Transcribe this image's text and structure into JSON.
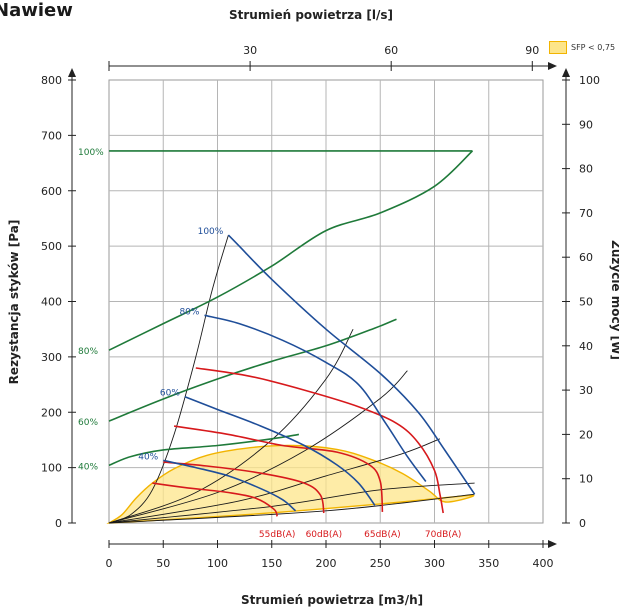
{
  "title": "Nawiew",
  "sfp_legend": {
    "label": "SFP < 0,75",
    "color": "#fde58a",
    "border": "#f2b400"
  },
  "chart_data": {
    "type": "line",
    "title": "Nawiew",
    "xlabel": "Strumień powietrza [m3/h]",
    "xlabel_top": "Strumień powietrza [l/s]",
    "ylabel": "Rezystancja styków [Pa]",
    "y2label": "Zużycie mocy [W]",
    "xlim": [
      0,
      400
    ],
    "ylim": [
      0,
      800
    ],
    "y2lim": [
      0,
      100
    ],
    "x_ticks": [
      0,
      50,
      100,
      150,
      200,
      250,
      300,
      350,
      400
    ],
    "y_ticks": [
      0,
      100,
      200,
      300,
      400,
      500,
      600,
      700,
      800
    ],
    "y2_ticks": [
      0,
      10,
      20,
      30,
      40,
      50,
      60,
      70,
      80,
      90,
      100
    ],
    "top_ticks": [
      30,
      60,
      90
    ],
    "grid": true,
    "colors": {
      "fan": "#1f4e99",
      "power": "#1f7a3a",
      "noise": "#d7191c",
      "system": "#1a1a1a",
      "sfp": "#fde58a",
      "sfp_edge": "#f2b400"
    },
    "sfp_region": {
      "name": "SFP < 0,75",
      "outline": [
        [
          0,
          0
        ],
        [
          12,
          15
        ],
        [
          25,
          45
        ],
        [
          40,
          72
        ],
        [
          60,
          98
        ],
        [
          90,
          122
        ],
        [
          130,
          136
        ],
        [
          170,
          140
        ],
        [
          210,
          133
        ],
        [
          240,
          116
        ],
        [
          270,
          90
        ],
        [
          295,
          58
        ],
        [
          310,
          38
        ],
        [
          335,
          50
        ],
        [
          270,
          38
        ],
        [
          200,
          26
        ],
        [
          140,
          17
        ],
        [
          80,
          9
        ],
        [
          0,
          0
        ]
      ]
    },
    "fan_curves": [
      {
        "label": "100%",
        "points": [
          [
            110,
            520
          ],
          [
            120,
            500
          ],
          [
            150,
            440
          ],
          [
            200,
            350
          ],
          [
            250,
            270
          ],
          [
            285,
            200
          ],
          [
            310,
            130
          ],
          [
            337,
            52
          ]
        ]
      },
      {
        "label": "80%",
        "points": [
          [
            88,
            375
          ],
          [
            120,
            360
          ],
          [
            160,
            330
          ],
          [
            200,
            290
          ],
          [
            230,
            250
          ],
          [
            255,
            180
          ],
          [
            275,
            120
          ],
          [
            292,
            75
          ]
        ]
      },
      {
        "label": "60%",
        "points": [
          [
            70,
            228
          ],
          [
            100,
            205
          ],
          [
            140,
            175
          ],
          [
            180,
            140
          ],
          [
            210,
            105
          ],
          [
            230,
            72
          ],
          [
            245,
            32
          ]
        ]
      },
      {
        "label": "40%",
        "points": [
          [
            50,
            113
          ],
          [
            80,
            100
          ],
          [
            110,
            85
          ],
          [
            140,
            62
          ],
          [
            160,
            42
          ],
          [
            172,
            22
          ]
        ]
      }
    ],
    "power_curves": [
      {
        "label": "100%",
        "points_w": [
          [
            0,
            84
          ],
          [
            50,
            84
          ],
          [
            100,
            84
          ],
          [
            150,
            84
          ],
          [
            200,
            84
          ],
          [
            250,
            84
          ],
          [
            300,
            84
          ],
          [
            335,
            84
          ]
        ]
      },
      {
        "label": "80%",
        "points_w": [
          [
            0,
            39
          ],
          [
            50,
            45
          ],
          [
            100,
            51
          ],
          [
            150,
            58
          ],
          [
            200,
            66
          ],
          [
            250,
            70
          ],
          [
            300,
            76
          ],
          [
            335,
            84
          ]
        ]
      },
      {
        "label": "60%",
        "points_w": [
          [
            0,
            23
          ],
          [
            50,
            28
          ],
          [
            100,
            32.5
          ],
          [
            150,
            36.5
          ],
          [
            200,
            40
          ],
          [
            245,
            44
          ],
          [
            265,
            46
          ]
        ]
      },
      {
        "label": "40%",
        "points_w": [
          [
            0,
            13
          ],
          [
            20,
            15
          ],
          [
            50,
            16.5
          ],
          [
            100,
            17.5
          ],
          [
            150,
            19
          ],
          [
            175,
            20
          ]
        ]
      }
    ],
    "noise_curves": [
      {
        "label": "55dB(A)",
        "points": [
          [
            40,
            72
          ],
          [
            70,
            64
          ],
          [
            110,
            55
          ],
          [
            135,
            45
          ],
          [
            152,
            25
          ],
          [
            155,
            12
          ]
        ]
      },
      {
        "label": "60dB(A)",
        "points": [
          [
            50,
            110
          ],
          [
            90,
            103
          ],
          [
            140,
            90
          ],
          [
            180,
            72
          ],
          [
            195,
            50
          ],
          [
            198,
            18
          ]
        ]
      },
      {
        "label": "65dB(A)",
        "points": [
          [
            60,
            175
          ],
          [
            110,
            160
          ],
          [
            160,
            140
          ],
          [
            210,
            128
          ],
          [
            240,
            105
          ],
          [
            250,
            75
          ],
          [
            252,
            20
          ]
        ]
      },
      {
        "label": "70dB(A)",
        "points": [
          [
            80,
            280
          ],
          [
            130,
            265
          ],
          [
            180,
            240
          ],
          [
            230,
            210
          ],
          [
            265,
            180
          ],
          [
            285,
            145
          ],
          [
            300,
            95
          ],
          [
            305,
            52
          ],
          [
            308,
            18
          ]
        ]
      }
    ],
    "system_curves": [
      [
        [
          0,
          0
        ],
        [
          20,
          15
        ],
        [
          40,
          60
        ],
        [
          60,
          160
        ],
        [
          80,
          300
        ],
        [
          95,
          420
        ],
        [
          110,
          520
        ]
      ],
      [
        [
          0,
          0
        ],
        [
          80,
          55
        ],
        [
          150,
          150
        ],
        [
          200,
          260
        ],
        [
          225,
          350
        ]
      ],
      [
        [
          0,
          0
        ],
        [
          100,
          55
        ],
        [
          180,
          130
        ],
        [
          250,
          225
        ],
        [
          275,
          275
        ]
      ],
      [
        [
          0,
          0
        ],
        [
          120,
          40
        ],
        [
          200,
          85
        ],
        [
          270,
          125
        ],
        [
          305,
          152
        ]
      ],
      [
        [
          0,
          0
        ],
        [
          150,
          30
        ],
        [
          250,
          60
        ],
        [
          337,
          72
        ]
      ],
      [
        [
          0,
          0
        ],
        [
          200,
          22
        ],
        [
          337,
          52
        ]
      ]
    ]
  }
}
